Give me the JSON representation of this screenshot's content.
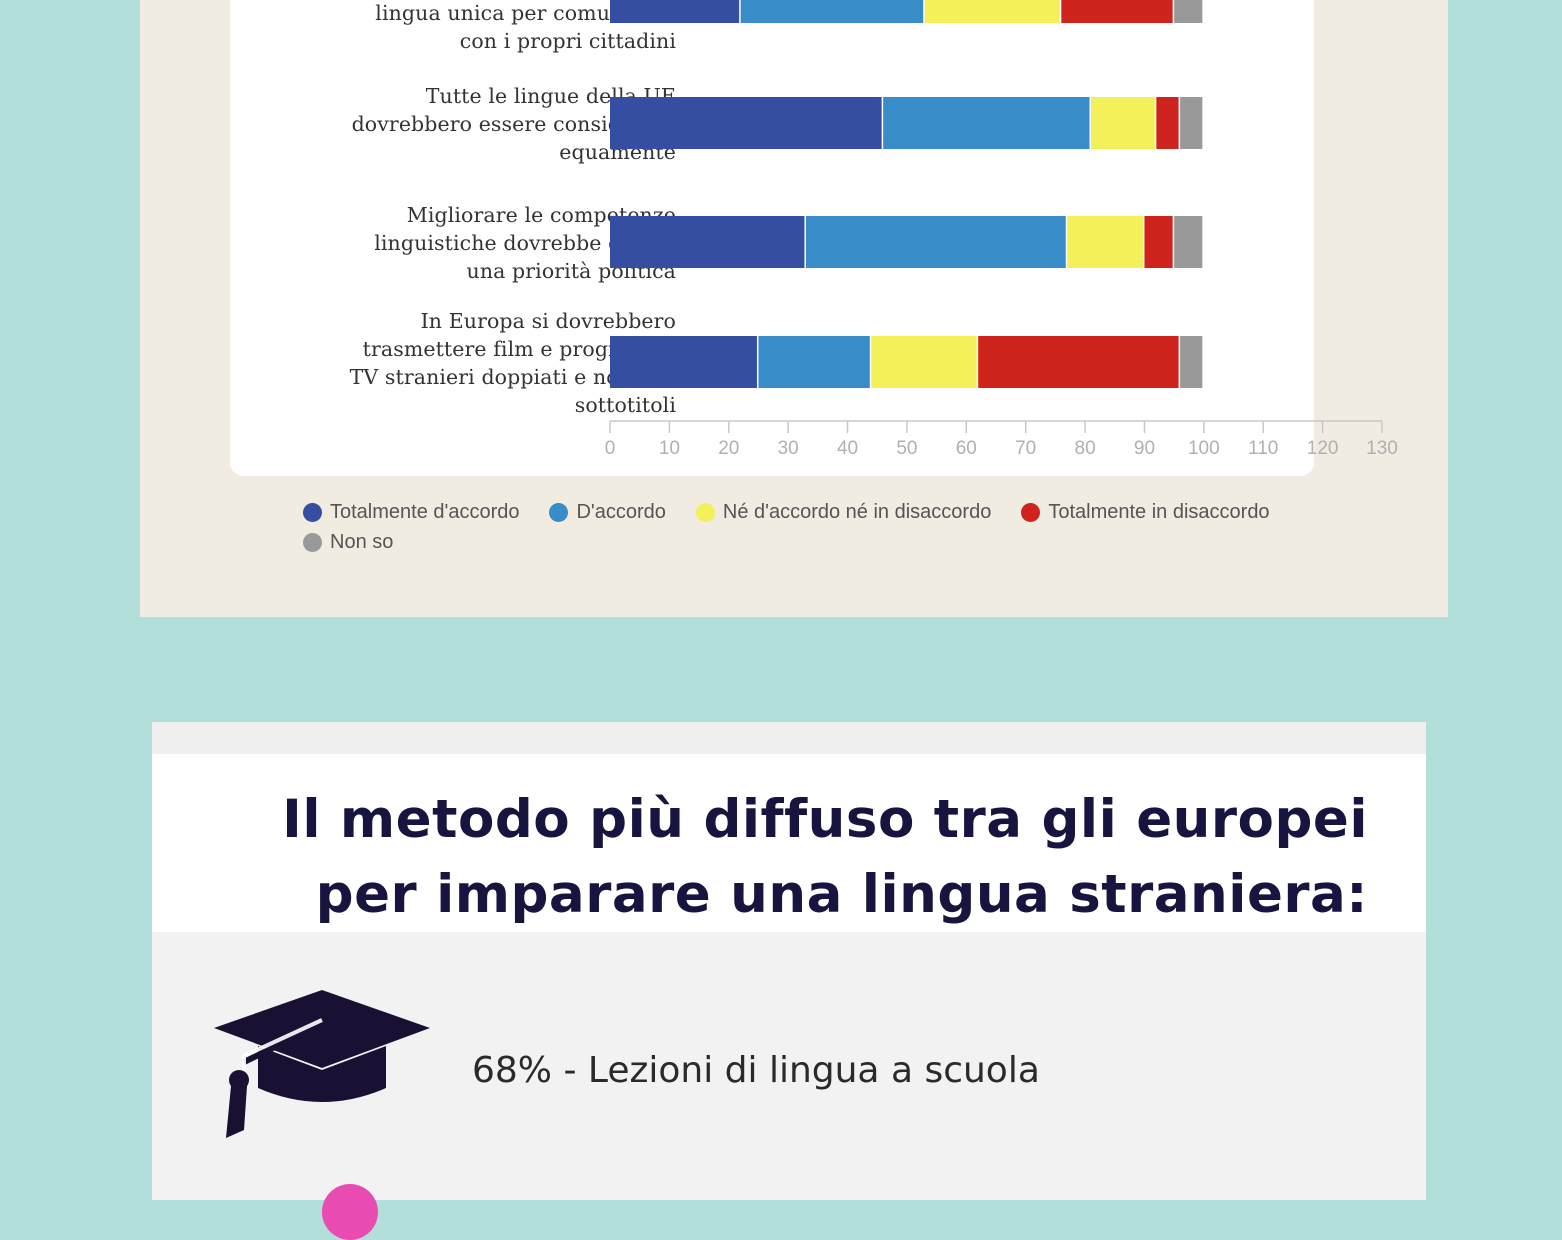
{
  "chart_data": {
    "type": "bar",
    "orientation": "horizontal",
    "stacked": true,
    "categories": [
      "lingua unica per comunicare\ncon i propri cittadini",
      "Tutte le lingue della UE\ndovrebbero essere considerate\nequamente",
      "Migliorare le competenze\nlinguistiche dovrebbe essere\nuna priorità politica",
      "In Europa si dovrebbero\ntrasmettere film e programmi\nTV stranieri doppiati e non con\nsottotitoli"
    ],
    "series": [
      {
        "name": "Totalmente d'accordo",
        "color": "#354ea1",
        "values": [
          22,
          46,
          33,
          25
        ]
      },
      {
        "name": "D'accordo",
        "color": "#388cc8",
        "values": [
          31,
          35,
          44,
          19
        ]
      },
      {
        "name": "Né d'accordo né in disaccordo",
        "color": "#f3f05a",
        "values": [
          23,
          11,
          13,
          18
        ]
      },
      {
        "name": "Totalmente in disaccordo",
        "color": "#cf231d",
        "values": [
          19,
          4,
          5,
          34
        ]
      },
      {
        "name": "Non so",
        "color": "#999999",
        "values": [
          5,
          4,
          5,
          4
        ]
      }
    ],
    "xlim": [
      0,
      130
    ],
    "xticks": [
      0,
      10,
      20,
      30,
      40,
      50,
      60,
      70,
      80,
      90,
      100,
      110,
      120,
      130
    ],
    "legend_position": "bottom"
  },
  "method": {
    "title_line1": "Il metodo più diffuso tra gli europei",
    "title_line2": "per imparare una lingua straniera:",
    "item1_text": "68% - Lezioni di lingua a scuola",
    "item1_icon": "graduation-cap-icon"
  }
}
